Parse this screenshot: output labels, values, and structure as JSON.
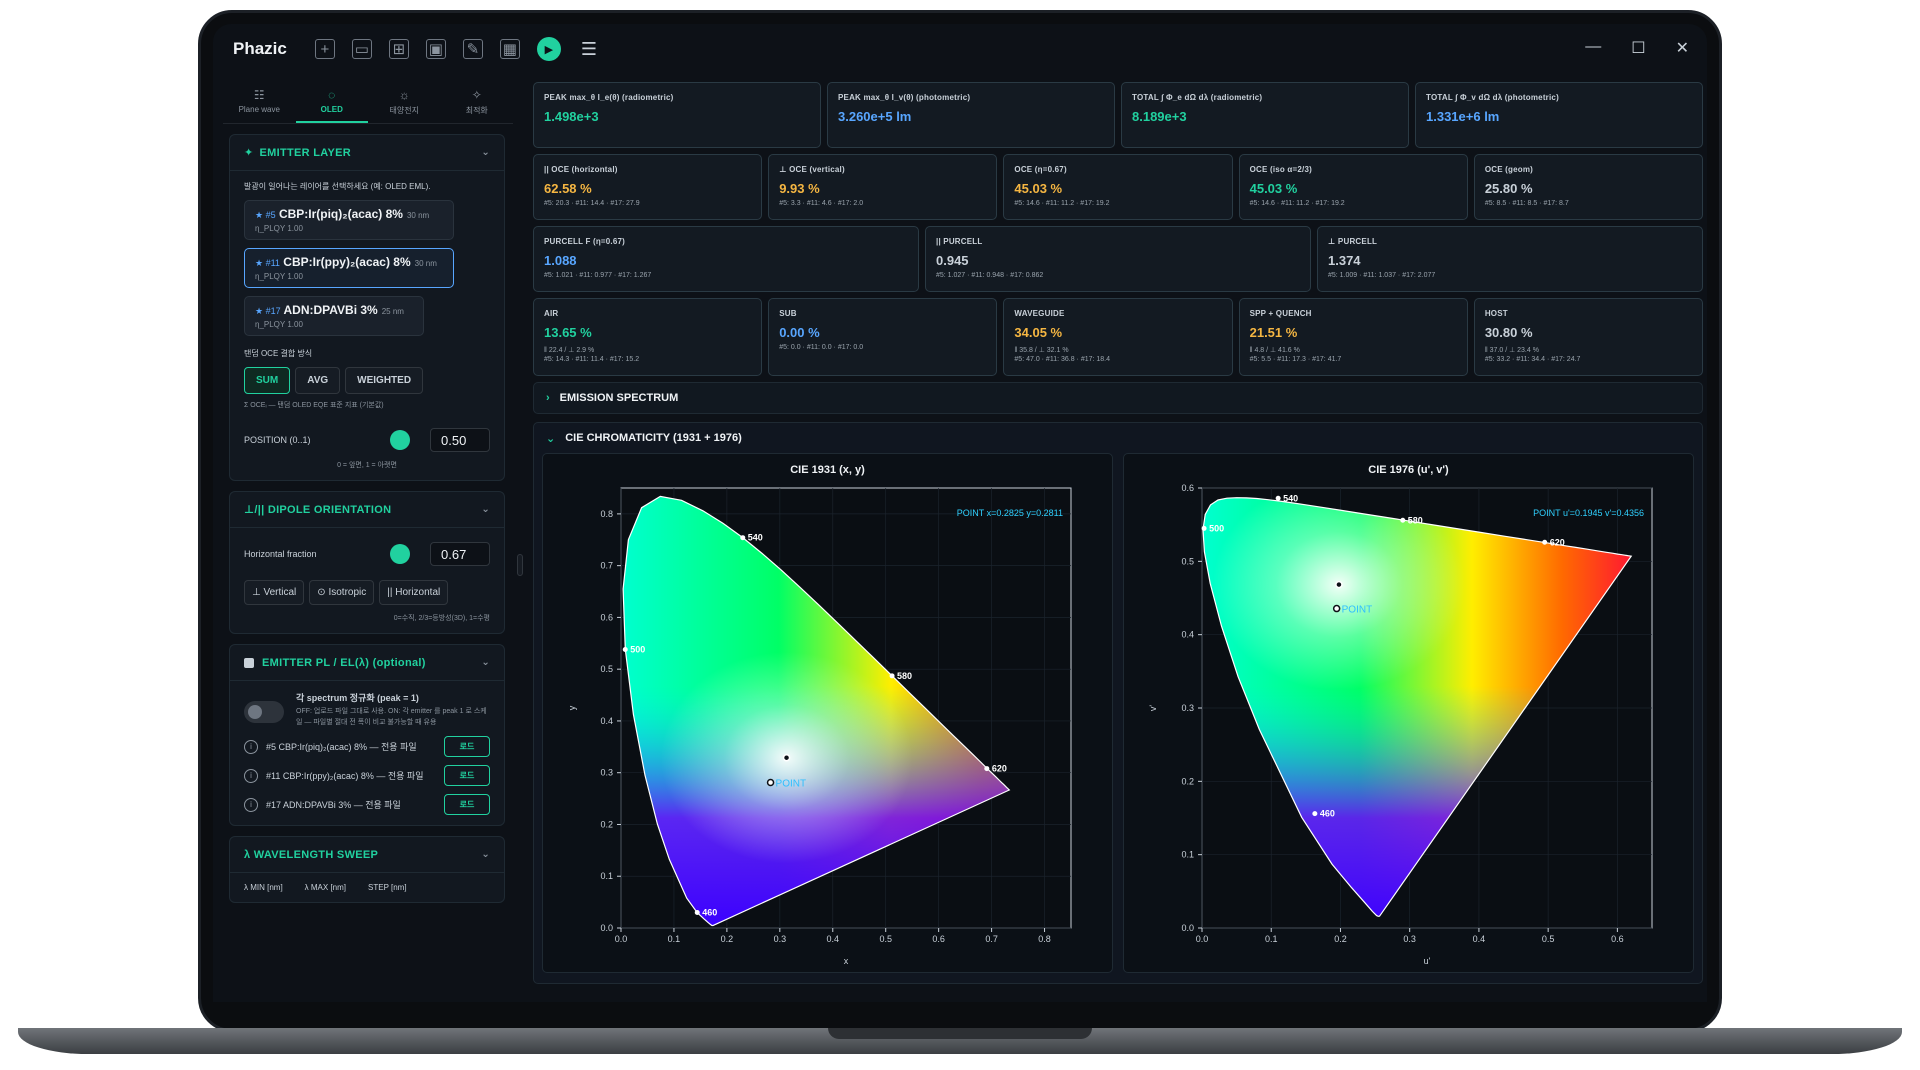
{
  "app": {
    "name": "Phazic"
  },
  "sidebar_tabs": [
    {
      "label": "Plane wave",
      "icon": "grid-icon"
    },
    {
      "label": "OLED",
      "icon": "bulb-icon"
    },
    {
      "label": "태양전지",
      "icon": "sun-icon"
    },
    {
      "label": "최적화",
      "icon": "sparkle-icon"
    }
  ],
  "emitter_layer": {
    "title": "EMITTER LAYER",
    "desc": "발광이 일어나는 레이어를 선택하세요 (예: OLED EML).",
    "cards": [
      {
        "idx": "#5",
        "name": "CBP:Ir(piq)₂(acac) 8%",
        "thick": "30 nm",
        "plqy": "η_PLQY 1.00",
        "selected": false
      },
      {
        "idx": "#11",
        "name": "CBP:Ir(ppy)₂(acac) 8%",
        "thick": "30 nm",
        "plqy": "η_PLQY 1.00",
        "selected": true
      },
      {
        "idx": "#17",
        "name": "ADN:DPAVBi 3%",
        "thick": "25 nm",
        "plqy": "η_PLQY 1.00",
        "selected": false
      }
    ],
    "combine_label": "탠덤 OCE 결합 방식",
    "combine_buttons": [
      "SUM",
      "AVG",
      "WEIGHTED"
    ],
    "combine_note": "Σ OCEᵢ — 탠덤 OLED EQE 표준 지표 (기본값)",
    "position_label": "POSITION (0..1)",
    "position_value": "0.50",
    "position_hint": "0 = 앞면, 1 = 아랫면"
  },
  "dipole": {
    "title": "⊥/|| DIPOLE ORIENTATION",
    "label": "Horizontal fraction",
    "value": "0.67",
    "buttons": [
      "⊥ Vertical",
      "⊙ Isotropic",
      "|| Horizontal"
    ],
    "hint": "0=수직, 2/3=등방성(3D), 1=수평"
  },
  "emitter_pl": {
    "title": "EMITTER PL / EL(λ)  (optional)",
    "toggle_title": "각 spectrum 정규화 (peak = 1)",
    "toggle_desc": "OFF: 업로드 파일 그대로 사용.  ON: 각 emitter 를 peak 1 로 스케일 — 파일별 절대 전 폭이 비교 불가능할 때 유용",
    "rows": [
      "#5 CBP:Ir(piq)₂(acac) 8% — 전용 파일",
      "#11 CBP:Ir(ppy)₂(acac) 8% — 전용 파일",
      "#17 ADN:DPAVBi 3% — 전용 파일"
    ],
    "load_label": "로드"
  },
  "sweep": {
    "title": "λ WAVELENGTH SWEEP",
    "labels": [
      "λ MIN [nm]",
      "λ MAX [nm]",
      "STEP [nm]"
    ]
  },
  "metrics": {
    "row1": [
      {
        "title": "PEAK  max_θ I_e(θ)  (radiometric)",
        "value": "1.498e+3",
        "color": "#21d19f"
      },
      {
        "title": "PEAK  max_θ I_v(θ)  (photometric)",
        "value": "3.260e+5 lm",
        "color": "#58a6ff"
      },
      {
        "title": "TOTAL  ∫ Φ_e dΩ dλ  (radiometric)",
        "value": "8.189e+3",
        "color": "#21d19f"
      },
      {
        "title": "TOTAL  ∫ Φ_v dΩ dλ  (photometric)",
        "value": "1.331e+6 lm",
        "color": "#58a6ff"
      }
    ],
    "row2": [
      {
        "title": "|| OCE (horizontal)",
        "value": "62.58 %",
        "sub": "#5: 20.3 · #11: 14.4 · #17: 27.9",
        "color": "#f5b642"
      },
      {
        "title": "⊥ OCE (vertical)",
        "value": "9.93 %",
        "sub": "#5: 3.3 · #11: 4.6 · #17: 2.0",
        "color": "#f5b642"
      },
      {
        "title": "OCE (η=0.67)",
        "value": "45.03 %",
        "sub": "#5: 14.6 · #11: 11.2 · #17: 19.2",
        "color": "#f5b642"
      },
      {
        "title": "OCE (iso α=2/3)",
        "value": "45.03 %",
        "sub": "#5: 14.6 · #11: 11.2 · #17: 19.2",
        "color": "#21d19f"
      },
      {
        "title": "OCE (geom)",
        "value": "25.80 %",
        "sub": "#5: 8.5 · #11: 8.5 · #17: 8.7",
        "color": "#c9d1d9"
      }
    ],
    "row3": [
      {
        "title": "PURCELL  F  (η=0.67)",
        "value": "1.088",
        "sub": "#5: 1.021 · #11: 0.977 · #17: 1.267",
        "color": "#58a6ff"
      },
      {
        "title": "|| PURCELL",
        "value": "0.945",
        "sub": "#5: 1.027 · #11: 0.948 · #17: 0.862",
        "color": "#c9d1d9"
      },
      {
        "title": "⊥ PURCELL",
        "value": "1.374",
        "sub": "#5: 1.009 · #11: 1.037 · #17: 2.077",
        "color": "#c9d1d9"
      }
    ],
    "row4": [
      {
        "title": "AIR",
        "value": "13.65 %",
        "sub1": "‖ 22.4 / ⊥ 2.9 %",
        "sub": "#5: 14.3 · #11: 11.4 · #17: 15.2",
        "color": "#21d19f"
      },
      {
        "title": "SUB",
        "value": "0.00 %",
        "sub1": "",
        "sub": "#5: 0.0 · #11: 0.0 · #17: 0.0",
        "color": "#58a6ff"
      },
      {
        "title": "WAVEGUIDE",
        "value": "34.05 %",
        "sub1": "‖ 35.8 / ⊥ 32.1 %",
        "sub": "#5: 47.0 · #11: 36.8 · #17: 18.4",
        "color": "#f5b642"
      },
      {
        "title": "SPP + QUENCH",
        "value": "21.51 %",
        "sub1": "‖ 4.8 / ⊥ 41.6 %",
        "sub": "#5: 5.5 · #11: 17.3 · #17: 41.7",
        "color": "#f5b642"
      },
      {
        "title": "HOST",
        "value": "30.80 %",
        "sub1": "‖ 37.0 / ⊥ 23.4 %",
        "sub": "#5: 33.2 · #11: 34.4 · #17: 24.7",
        "color": "#c9d1d9"
      }
    ]
  },
  "sections": {
    "spectrum": "EMISSION SPECTRUM",
    "cie": "CIE CHROMATICITY  (1931 + 1976)"
  },
  "chart_data": [
    {
      "type": "scatter",
      "title": "CIE 1931 (x, y)",
      "xlabel": "x",
      "ylabel": "y",
      "xlim": [
        0,
        0.85
      ],
      "ylim": [
        0,
        0.85
      ],
      "xticks": [
        "0.0",
        "0.1",
        "0.2",
        "0.3",
        "0.4",
        "0.5",
        "0.6",
        "0.7",
        "0.8"
      ],
      "yticks": [
        "0.0",
        "0.1",
        "0.2",
        "0.3",
        "0.4",
        "0.5",
        "0.6",
        "0.7",
        "0.8"
      ],
      "locus_labels": [
        {
          "label": "460",
          "x": 0.144,
          "y": 0.03
        },
        {
          "label": "500",
          "x": 0.008,
          "y": 0.538
        },
        {
          "label": "540",
          "x": 0.23,
          "y": 0.754
        },
        {
          "label": "580",
          "x": 0.512,
          "y": 0.487
        },
        {
          "label": "620",
          "x": 0.691,
          "y": 0.308
        }
      ],
      "point": {
        "label": "POINT",
        "x": 0.2825,
        "y": 0.2811
      },
      "white": {
        "x": 0.3127,
        "y": 0.329
      },
      "readout": "POINT x=0.2825 y=0.2811"
    },
    {
      "type": "scatter",
      "title": "CIE 1976 (u', v')",
      "xlabel": "u'",
      "ylabel": "v'",
      "xlim": [
        0,
        0.65
      ],
      "ylim": [
        0,
        0.6
      ],
      "xticks": [
        "0.0",
        "0.1",
        "0.2",
        "0.3",
        "0.4",
        "0.5",
        "0.6"
      ],
      "yticks": [
        "0.0",
        "0.1",
        "0.2",
        "0.3",
        "0.4",
        "0.5",
        "0.6"
      ],
      "locus_labels": [
        {
          "label": "460",
          "x": 0.163,
          "y": 0.156
        },
        {
          "label": "500",
          "x": 0.003,
          "y": 0.545
        },
        {
          "label": "540",
          "x": 0.11,
          "y": 0.586
        },
        {
          "label": "580",
          "x": 0.29,
          "y": 0.556
        },
        {
          "label": "620",
          "x": 0.495,
          "y": 0.526
        }
      ],
      "point": {
        "label": "POINT",
        "x": 0.1945,
        "y": 0.4356
      },
      "white": {
        "x": 0.1978,
        "y": 0.4683
      },
      "readout": "POINT u'=0.1945 v'=0.4356"
    }
  ]
}
